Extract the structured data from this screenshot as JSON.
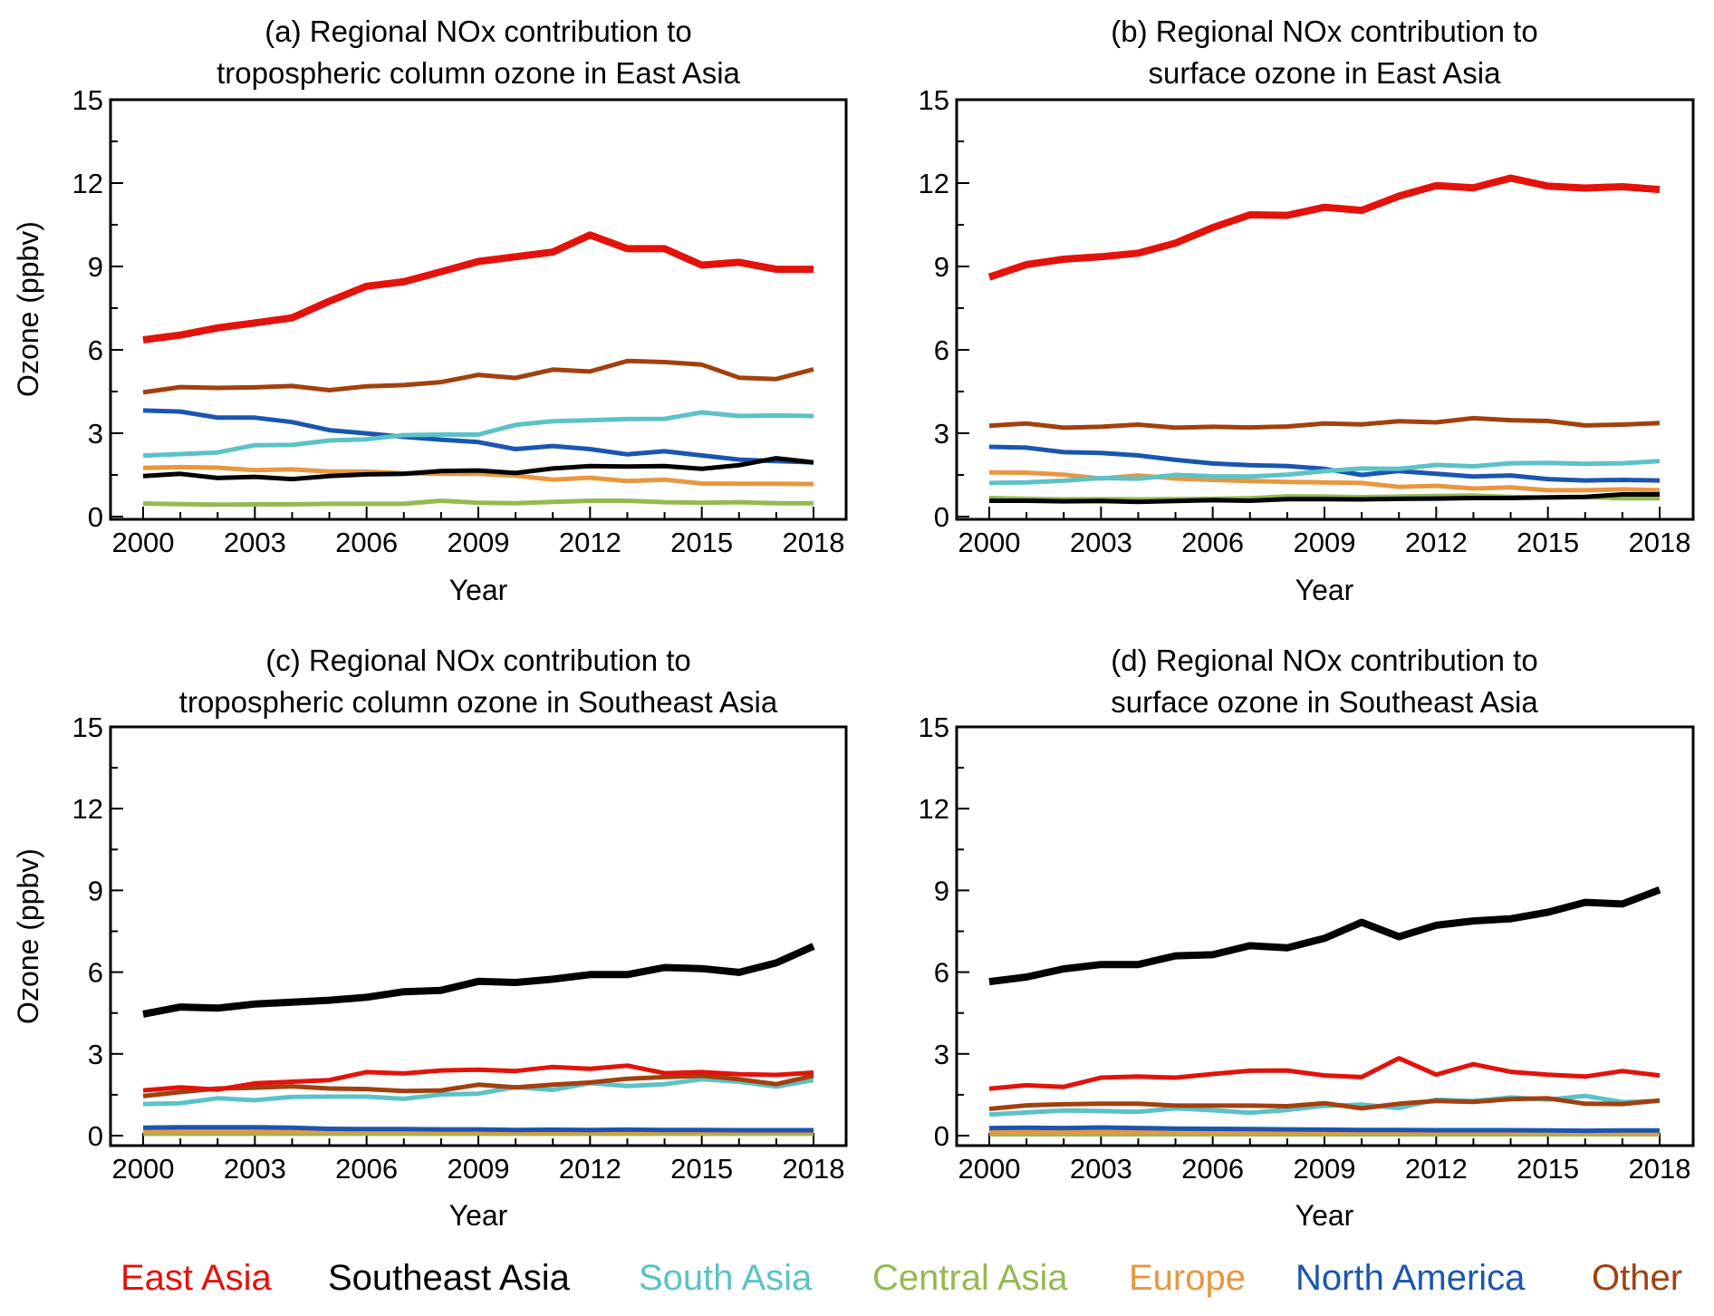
{
  "chart_data": [
    {
      "type": "line",
      "panel": "a",
      "title": [
        "(a) Regional NOx contribution to",
        "tropospheric column ozone in East Asia"
      ],
      "xlabel": "Year",
      "ylabel": "Ozone (ppbv)",
      "xlim": [
        2000,
        2018
      ],
      "ylim": [
        0,
        15
      ],
      "xticks": [
        2000,
        2003,
        2006,
        2009,
        2012,
        2015,
        2018
      ],
      "yticks": [
        0,
        3,
        6,
        9,
        12,
        15
      ],
      "x": [
        2000,
        2001,
        2002,
        2003,
        2004,
        2005,
        2006,
        2007,
        2008,
        2009,
        2010,
        2011,
        2012,
        2013,
        2014,
        2015,
        2016,
        2017,
        2018
      ],
      "series": [
        {
          "name": "East Asia",
          "values": [
            6.36,
            6.53,
            6.79,
            6.97,
            7.15,
            7.75,
            8.29,
            8.45,
            8.81,
            9.18,
            9.35,
            9.52,
            10.13,
            9.64,
            9.64,
            9.05,
            9.15,
            8.9,
            8.9
          ]
        },
        {
          "name": "Southeast Asia",
          "values": [
            1.46,
            1.54,
            1.39,
            1.43,
            1.35,
            1.46,
            1.52,
            1.54,
            1.64,
            1.66,
            1.57,
            1.73,
            1.82,
            1.8,
            1.82,
            1.72,
            1.85,
            2.1,
            1.95
          ]
        },
        {
          "name": "South Asia",
          "values": [
            2.19,
            2.25,
            2.31,
            2.57,
            2.58,
            2.74,
            2.78,
            2.93,
            2.95,
            2.95,
            3.3,
            3.43,
            3.47,
            3.51,
            3.52,
            3.75,
            3.62,
            3.64,
            3.62
          ]
        },
        {
          "name": "Central Asia",
          "values": [
            0.47,
            0.45,
            0.43,
            0.44,
            0.44,
            0.46,
            0.46,
            0.46,
            0.57,
            0.5,
            0.48,
            0.53,
            0.57,
            0.57,
            0.52,
            0.5,
            0.52,
            0.48,
            0.48
          ]
        },
        {
          "name": "Europe",
          "values": [
            1.75,
            1.78,
            1.76,
            1.67,
            1.7,
            1.62,
            1.62,
            1.56,
            1.54,
            1.54,
            1.47,
            1.33,
            1.4,
            1.28,
            1.33,
            1.19,
            1.18,
            1.18,
            1.17
          ]
        },
        {
          "name": "North America",
          "values": [
            3.82,
            3.78,
            3.56,
            3.56,
            3.4,
            3.11,
            2.99,
            2.87,
            2.77,
            2.68,
            2.43,
            2.54,
            2.43,
            2.24,
            2.35,
            2.2,
            2.05,
            2.0,
            1.95
          ]
        },
        {
          "name": "Other",
          "values": [
            4.47,
            4.66,
            4.63,
            4.65,
            4.7,
            4.55,
            4.69,
            4.73,
            4.84,
            5.1,
            4.99,
            5.29,
            5.22,
            5.6,
            5.56,
            5.47,
            5.0,
            4.95,
            5.3
          ]
        }
      ]
    },
    {
      "type": "line",
      "panel": "b",
      "title": [
        "(b) Regional NOx contribution to",
        "surface ozone in East Asia"
      ],
      "xlabel": "Year",
      "ylabel": "",
      "xlim": [
        2000,
        2018
      ],
      "ylim": [
        0,
        15
      ],
      "xticks": [
        2000,
        2003,
        2006,
        2009,
        2012,
        2015,
        2018
      ],
      "yticks": [
        0,
        3,
        6,
        9,
        12,
        15
      ],
      "x": [
        2000,
        2001,
        2002,
        2003,
        2004,
        2005,
        2006,
        2007,
        2008,
        2009,
        2010,
        2011,
        2012,
        2013,
        2014,
        2015,
        2016,
        2017,
        2018
      ],
      "series": [
        {
          "name": "East Asia",
          "values": [
            8.62,
            9.07,
            9.26,
            9.35,
            9.48,
            9.84,
            10.4,
            10.86,
            10.84,
            11.13,
            11.02,
            11.53,
            11.91,
            11.83,
            12.18,
            11.89,
            11.82,
            11.87,
            11.77
          ]
        },
        {
          "name": "Southeast Asia",
          "values": [
            0.57,
            0.57,
            0.55,
            0.56,
            0.53,
            0.56,
            0.59,
            0.57,
            0.63,
            0.63,
            0.62,
            0.64,
            0.65,
            0.67,
            0.67,
            0.69,
            0.71,
            0.8,
            0.8
          ]
        },
        {
          "name": "South Asia",
          "values": [
            1.21,
            1.23,
            1.29,
            1.39,
            1.36,
            1.5,
            1.45,
            1.44,
            1.51,
            1.64,
            1.73,
            1.72,
            1.86,
            1.81,
            1.92,
            1.93,
            1.9,
            1.92,
            2.0
          ]
        },
        {
          "name": "Central Asia",
          "values": [
            0.67,
            0.64,
            0.62,
            0.63,
            0.62,
            0.63,
            0.64,
            0.66,
            0.73,
            0.72,
            0.7,
            0.72,
            0.74,
            0.76,
            0.71,
            0.68,
            0.7,
            0.66,
            0.66
          ]
        },
        {
          "name": "Europe",
          "values": [
            1.59,
            1.58,
            1.51,
            1.37,
            1.48,
            1.37,
            1.32,
            1.28,
            1.25,
            1.23,
            1.21,
            1.07,
            1.11,
            1.01,
            1.05,
            0.95,
            0.95,
            0.98,
            0.95
          ]
        },
        {
          "name": "North America",
          "values": [
            2.51,
            2.48,
            2.32,
            2.29,
            2.2,
            2.04,
            1.91,
            1.85,
            1.82,
            1.72,
            1.5,
            1.64,
            1.54,
            1.44,
            1.48,
            1.35,
            1.3,
            1.32,
            1.3
          ]
        },
        {
          "name": "Other",
          "values": [
            3.27,
            3.35,
            3.2,
            3.23,
            3.31,
            3.2,
            3.23,
            3.21,
            3.24,
            3.35,
            3.32,
            3.43,
            3.39,
            3.54,
            3.47,
            3.44,
            3.28,
            3.31,
            3.37
          ]
        }
      ]
    },
    {
      "type": "line",
      "panel": "c",
      "title": [
        "(c) Regional NOx contribution to",
        "tropospheric column ozone in Southeast Asia"
      ],
      "xlabel": "Year",
      "ylabel": "Ozone (ppbv)",
      "xlim": [
        2000,
        2018
      ],
      "ylim": [
        0,
        15
      ],
      "xticks": [
        2000,
        2003,
        2006,
        2009,
        2012,
        2015,
        2018
      ],
      "yticks": [
        0,
        3,
        6,
        9,
        12,
        15
      ],
      "x": [
        2000,
        2001,
        2002,
        2003,
        2004,
        2005,
        2006,
        2007,
        2008,
        2009,
        2010,
        2011,
        2012,
        2013,
        2014,
        2015,
        2016,
        2017,
        2018
      ],
      "series": [
        {
          "name": "East Asia",
          "values": [
            1.66,
            1.77,
            1.69,
            1.92,
            1.98,
            2.04,
            2.33,
            2.28,
            2.39,
            2.42,
            2.37,
            2.52,
            2.45,
            2.57,
            2.29,
            2.33,
            2.25,
            2.23,
            2.31
          ]
        },
        {
          "name": "Southeast Asia",
          "values": [
            4.46,
            4.72,
            4.68,
            4.83,
            4.9,
            4.97,
            5.08,
            5.28,
            5.33,
            5.66,
            5.62,
            5.74,
            5.91,
            5.91,
            6.17,
            6.13,
            5.99,
            6.34,
            6.95
          ]
        },
        {
          "name": "South Asia",
          "values": [
            1.16,
            1.19,
            1.37,
            1.3,
            1.42,
            1.43,
            1.43,
            1.35,
            1.51,
            1.54,
            1.78,
            1.68,
            1.93,
            1.82,
            1.89,
            2.07,
            1.98,
            1.8,
            2.04
          ]
        },
        {
          "name": "Central Asia",
          "values": [
            0.07,
            0.07,
            0.07,
            0.07,
            0.07,
            0.07,
            0.07,
            0.07,
            0.07,
            0.07,
            0.07,
            0.07,
            0.07,
            0.07,
            0.07,
            0.07,
            0.07,
            0.07,
            0.07
          ]
        },
        {
          "name": "Europe",
          "values": [
            0.15,
            0.15,
            0.15,
            0.15,
            0.15,
            0.14,
            0.14,
            0.14,
            0.14,
            0.14,
            0.13,
            0.13,
            0.13,
            0.13,
            0.13,
            0.13,
            0.13,
            0.13,
            0.13
          ]
        },
        {
          "name": "North America",
          "values": [
            0.29,
            0.31,
            0.31,
            0.31,
            0.29,
            0.25,
            0.24,
            0.24,
            0.23,
            0.23,
            0.21,
            0.22,
            0.21,
            0.22,
            0.21,
            0.21,
            0.2,
            0.2,
            0.2
          ]
        },
        {
          "name": "Other",
          "values": [
            1.45,
            1.6,
            1.73,
            1.76,
            1.81,
            1.73,
            1.71,
            1.64,
            1.66,
            1.87,
            1.77,
            1.87,
            1.95,
            2.09,
            2.15,
            2.2,
            2.07,
            1.89,
            2.2
          ]
        }
      ]
    },
    {
      "type": "line",
      "panel": "d",
      "title": [
        "(d) Regional NOx contribution to",
        "surface ozone in Southeast Asia"
      ],
      "xlabel": "Year",
      "ylabel": "",
      "xlim": [
        2000,
        2018
      ],
      "ylim": [
        0,
        15
      ],
      "xticks": [
        2000,
        2003,
        2006,
        2009,
        2012,
        2015,
        2018
      ],
      "yticks": [
        0,
        3,
        6,
        9,
        12,
        15
      ],
      "x": [
        2000,
        2001,
        2002,
        2003,
        2004,
        2005,
        2006,
        2007,
        2008,
        2009,
        2010,
        2011,
        2012,
        2013,
        2014,
        2015,
        2016,
        2017,
        2018
      ],
      "series": [
        {
          "name": "East Asia",
          "values": [
            1.72,
            1.85,
            1.79,
            2.13,
            2.17,
            2.13,
            2.26,
            2.38,
            2.39,
            2.21,
            2.15,
            2.84,
            2.24,
            2.62,
            2.34,
            2.24,
            2.17,
            2.37,
            2.21
          ]
        },
        {
          "name": "Southeast Asia",
          "values": [
            5.65,
            5.82,
            6.12,
            6.28,
            6.28,
            6.6,
            6.64,
            6.97,
            6.89,
            7.24,
            7.83,
            7.3,
            7.72,
            7.88,
            7.96,
            8.2,
            8.56,
            8.5,
            9.02
          ]
        },
        {
          "name": "South Asia",
          "values": [
            0.77,
            0.85,
            0.92,
            0.9,
            0.87,
            1.0,
            0.93,
            0.84,
            0.94,
            1.09,
            1.14,
            1.01,
            1.32,
            1.27,
            1.4,
            1.32,
            1.46,
            1.23,
            1.27
          ]
        },
        {
          "name": "Central Asia",
          "values": [
            0.05,
            0.05,
            0.05,
            0.05,
            0.05,
            0.05,
            0.05,
            0.05,
            0.05,
            0.05,
            0.05,
            0.05,
            0.05,
            0.05,
            0.05,
            0.05,
            0.05,
            0.05,
            0.05
          ]
        },
        {
          "name": "Europe",
          "values": [
            0.13,
            0.13,
            0.13,
            0.13,
            0.13,
            0.13,
            0.12,
            0.12,
            0.12,
            0.12,
            0.12,
            0.12,
            0.12,
            0.12,
            0.12,
            0.12,
            0.11,
            0.11,
            0.11
          ]
        },
        {
          "name": "North America",
          "values": [
            0.28,
            0.29,
            0.28,
            0.3,
            0.28,
            0.26,
            0.25,
            0.24,
            0.23,
            0.22,
            0.21,
            0.21,
            0.2,
            0.2,
            0.2,
            0.19,
            0.18,
            0.19,
            0.19
          ]
        },
        {
          "name": "Other",
          "values": [
            0.98,
            1.11,
            1.15,
            1.17,
            1.17,
            1.1,
            1.1,
            1.1,
            1.08,
            1.19,
            1.0,
            1.17,
            1.27,
            1.24,
            1.34,
            1.37,
            1.17,
            1.16,
            1.29
          ]
        }
      ]
    }
  ],
  "legend": {
    "placement": "bottom",
    "items": [
      {
        "name": "East Asia",
        "color": "#e3120b"
      },
      {
        "name": "Southeast Asia",
        "color": "#000000"
      },
      {
        "name": "South Asia",
        "color": "#5bc2c7"
      },
      {
        "name": "Central Asia",
        "color": "#93ba4e"
      },
      {
        "name": "Europe",
        "color": "#e8973f"
      },
      {
        "name": "North America",
        "color": "#1a56b0"
      },
      {
        "name": "Other",
        "color": "#a2400f"
      }
    ]
  },
  "emphasis": {
    "a": "East Asia",
    "b": "East Asia",
    "c": "Southeast Asia",
    "d": "Southeast Asia"
  }
}
